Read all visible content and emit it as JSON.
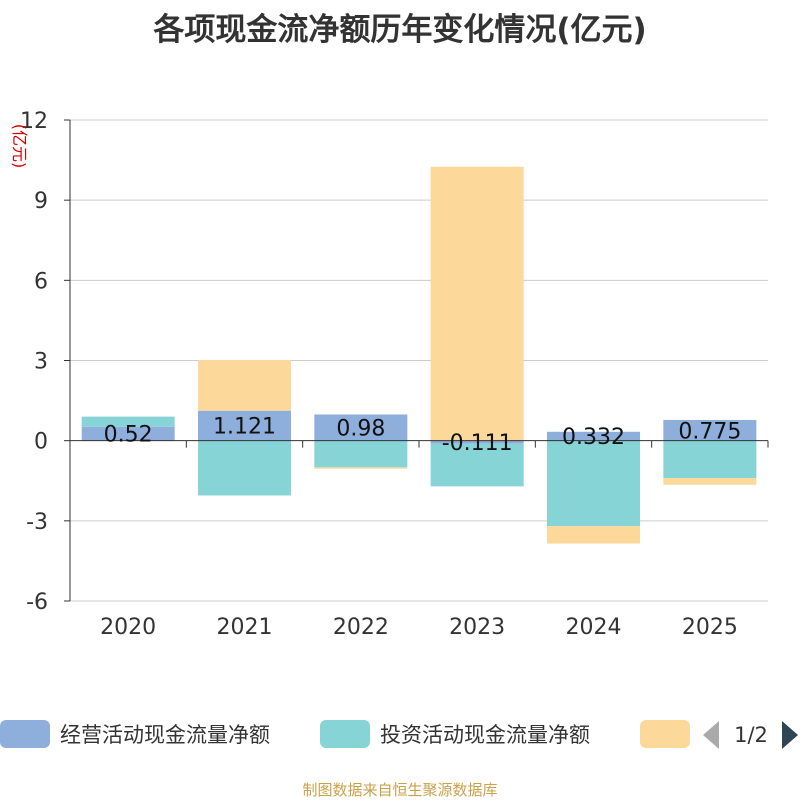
{
  "title": "各项现金流净额历年变化情况(亿元)",
  "source": "制图数据来自恒生聚源数据库",
  "colors": {
    "operating": "#8eaedb",
    "investing": "#86d4d6",
    "financing": "#fcd99a",
    "grid": "#cccccc",
    "axis": "#333333",
    "unit": "#d60000",
    "nav_disabled": "#aaaaaa",
    "nav_active": "#2f4554"
  },
  "legend": {
    "page": "1/2",
    "prev_icon": "triangle-left-icon",
    "next_icon": "triangle-right-icon"
  },
  "chart_data": {
    "type": "bar",
    "stacked": true,
    "title": "各项现金流净额历年变化情况(亿元)",
    "ylabel": "(亿元)",
    "xlabel": "",
    "ylim": [
      -6,
      12
    ],
    "yticks": [
      -6,
      -3,
      0,
      3,
      6,
      9,
      12
    ],
    "grid": true,
    "legend_position": "bottom",
    "categories": [
      "2020",
      "2021",
      "2022",
      "2023",
      "2024",
      "2025"
    ],
    "series": [
      {
        "name": "经营活动现金流量净额",
        "values": [
          0.52,
          1.121,
          0.98,
          -0.111,
          0.332,
          0.775
        ],
        "labels": [
          "0.52",
          "1.121",
          "0.98",
          "-0.111",
          "0.332",
          "0.775"
        ]
      },
      {
        "name": "投资活动现金流量净额",
        "values": [
          0.38,
          -2.05,
          -1.0,
          -1.6,
          -3.2,
          -1.4
        ],
        "labels": []
      },
      {
        "name": "",
        "values": [
          0.0,
          1.9,
          -0.05,
          10.25,
          -0.65,
          -0.25
        ],
        "labels": []
      }
    ]
  }
}
